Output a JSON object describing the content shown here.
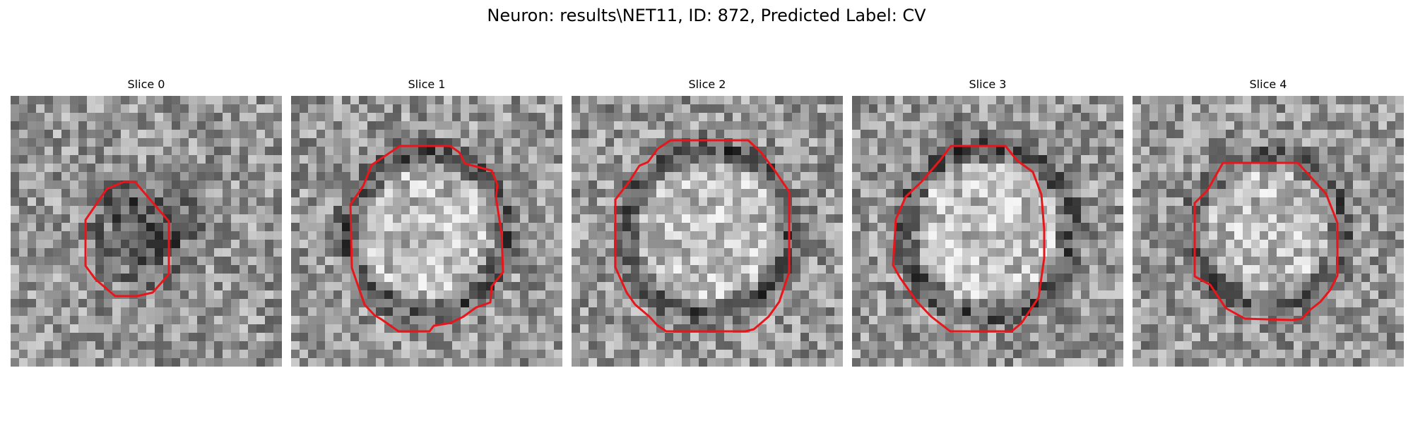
{
  "figure": {
    "title": "Neuron: results\\NET11, ID: 872, Predicted Label: CV"
  },
  "overlay_color": "#e8161b",
  "panels": [
    {
      "title": "Slice 0"
    },
    {
      "title": "Slice 1"
    },
    {
      "title": "Slice 2"
    },
    {
      "title": "Slice 3"
    },
    {
      "title": "Slice 4"
    }
  ]
}
